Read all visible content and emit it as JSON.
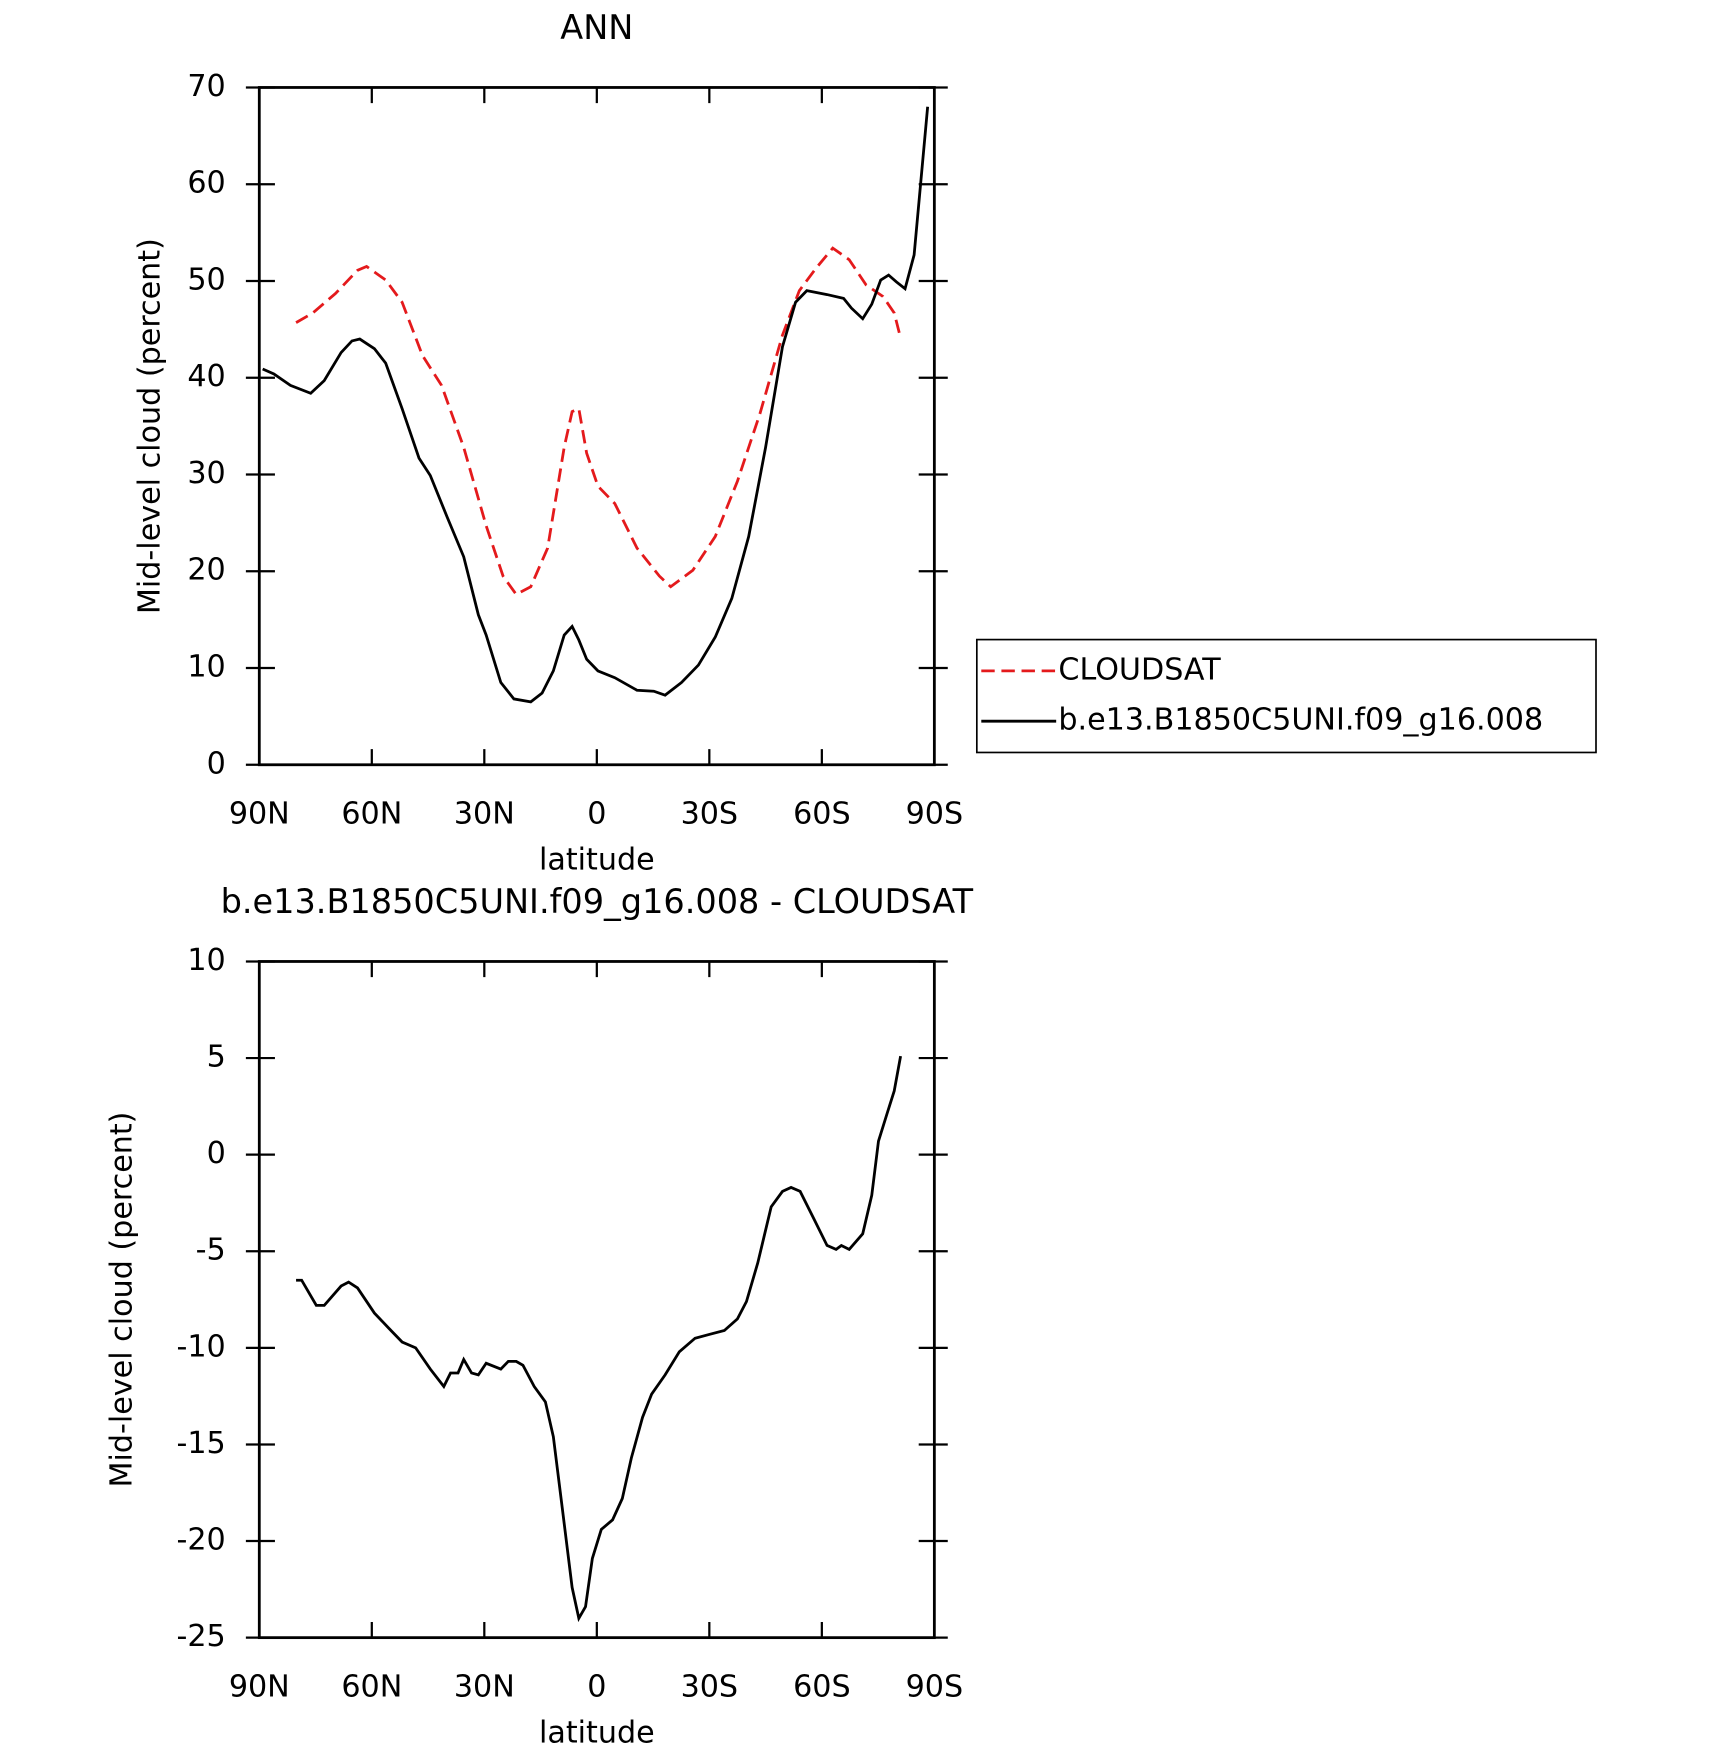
{
  "chart_data": [
    {
      "type": "line",
      "title": "ANN",
      "xlabel": "latitude",
      "ylabel": "Mid-level cloud (percent)",
      "xlim": [
        90,
        -90
      ],
      "ylim": [
        0,
        70
      ],
      "xticks": [
        {
          "value": 90,
          "label": "90N"
        },
        {
          "value": 60,
          "label": "60N"
        },
        {
          "value": 30,
          "label": "30N"
        },
        0,
        {
          "value": -30,
          "label": "30S"
        },
        {
          "value": -60,
          "label": "60S"
        },
        {
          "value": -90,
          "label": "90S"
        }
      ],
      "yticks": [
        0,
        10,
        20,
        30,
        40,
        50,
        60,
        70
      ],
      "legend": true,
      "series": [
        {
          "name": "CLOUDSAT",
          "color": "#e41a1c",
          "dash": true,
          "x": [
            80.2,
            75.7,
            69.7,
            63.8,
            61.4,
            56.3,
            51.9,
            46.5,
            41.4,
            35.5,
            29.5,
            25.0,
            21.5,
            17.6,
            13.1,
            8.7,
            6.6,
            4.8,
            2.7,
            -0.3,
            -4.8,
            -10.7,
            -16.7,
            -19.7,
            -25.6,
            -31.6,
            -37.5,
            -43.5,
            -49.5,
            -54.0,
            -58.4,
            -62.9,
            -67.3,
            -71.8,
            -76.3,
            -79.3,
            -81.0
          ],
          "values": [
            45.7,
            46.7,
            48.7,
            51.1,
            51.5,
            50.1,
            47.8,
            42.3,
            39.2,
            32.8,
            24.7,
            19.5,
            17.6,
            18.4,
            22.4,
            32.8,
            36.5,
            36.8,
            32.2,
            28.8,
            27.0,
            22.4,
            19.5,
            18.4,
            20.1,
            23.6,
            29.3,
            36.3,
            44.4,
            49.0,
            51.3,
            53.4,
            52.2,
            49.6,
            48.4,
            46.7,
            44.1
          ]
        },
        {
          "name": "b.e13.B1850C5UNI.f09_g16.008",
          "color": "#000000",
          "dash": false,
          "x": [
            89.1,
            86.1,
            81.7,
            76.3,
            72.7,
            68.2,
            65.3,
            63.2,
            59.3,
            56.3,
            51.9,
            47.4,
            44.4,
            39.9,
            35.5,
            31.6,
            29.5,
            25.6,
            22.1,
            17.6,
            14.6,
            11.6,
            8.7,
            6.6,
            4.8,
            2.7,
            -0.3,
            -4.8,
            -10.7,
            -15.2,
            -18.2,
            -22.6,
            -27.1,
            -31.6,
            -36.0,
            -40.5,
            -45.0,
            -49.5,
            -53.0,
            -56.0,
            -61.4,
            -65.8,
            -67.9,
            -70.9,
            -73.3,
            -75.7,
            -77.8,
            -79.9,
            -82.2,
            -84.6,
            -88.2
          ],
          "values": [
            40.9,
            40.4,
            39.2,
            38.4,
            39.7,
            42.6,
            43.8,
            44.0,
            43.0,
            41.5,
            36.8,
            31.7,
            29.9,
            25.6,
            21.5,
            15.5,
            13.4,
            8.5,
            6.8,
            6.5,
            7.4,
            9.7,
            13.4,
            14.3,
            12.9,
            10.9,
            9.7,
            9.0,
            7.7,
            7.6,
            7.2,
            8.5,
            10.3,
            13.2,
            17.2,
            23.6,
            32.8,
            43.2,
            47.8,
            49.0,
            48.6,
            48.2,
            47.2,
            46.1,
            47.6,
            50.1,
            50.6,
            49.9,
            49.2,
            52.7,
            68.0
          ]
        }
      ]
    },
    {
      "type": "line",
      "title": "b.e13.B1850C5UNI.f09_g16.008 - CLOUDSAT",
      "xlabel": "latitude",
      "ylabel": "Mid-level cloud (percent)",
      "xlim": [
        90,
        -90
      ],
      "ylim": [
        -25,
        10
      ],
      "xticks": [
        {
          "value": 90,
          "label": "90N"
        },
        {
          "value": 60,
          "label": "60N"
        },
        {
          "value": 30,
          "label": "30N"
        },
        0,
        {
          "value": -30,
          "label": "30S"
        },
        {
          "value": -60,
          "label": "60S"
        },
        {
          "value": -90,
          "label": "90S"
        }
      ],
      "yticks": [
        -25,
        -20,
        -15,
        -10,
        -5,
        0,
        5,
        10
      ],
      "legend": false,
      "series": [
        {
          "color": "#000000",
          "dash": false,
          "x": [
            80.2,
            78.7,
            74.8,
            72.7,
            68.2,
            66.2,
            63.8,
            59.3,
            55.4,
            51.9,
            48.3,
            44.4,
            40.8,
            39.0,
            37.0,
            35.5,
            33.4,
            31.6,
            29.5,
            25.6,
            23.6,
            21.5,
            19.7,
            16.7,
            13.7,
            11.6,
            9.2,
            6.6,
            4.8,
            3.0,
            1.2,
            -1.2,
            -4.2,
            -6.8,
            -9.2,
            -12.2,
            -14.6,
            -18.2,
            -22.0,
            -26.2,
            -30.1,
            -34.0,
            -37.5,
            -39.9,
            -42.9,
            -46.5,
            -49.5,
            -51.8,
            -54.2,
            -57.8,
            -61.4,
            -63.8,
            -65.2,
            -67.3,
            -70.9,
            -73.3,
            -75.1,
            -77.5,
            -79.3,
            -81.0
          ],
          "values": [
            -6.5,
            -6.5,
            -7.8,
            -7.8,
            -6.8,
            -6.6,
            -6.9,
            -8.2,
            -9.0,
            -9.7,
            -10.0,
            -11.1,
            -12.0,
            -11.3,
            -11.3,
            -10.6,
            -11.3,
            -11.4,
            -10.8,
            -11.1,
            -10.7,
            -10.7,
            -10.9,
            -12.0,
            -12.8,
            -14.6,
            -18.3,
            -22.4,
            -24.0,
            -23.4,
            -20.9,
            -19.4,
            -18.9,
            -17.8,
            -15.7,
            -13.6,
            -12.4,
            -11.4,
            -10.2,
            -9.5,
            -9.3,
            -9.1,
            -8.5,
            -7.6,
            -5.6,
            -2.7,
            -1.9,
            -1.7,
            -1.9,
            -3.3,
            -4.7,
            -4.9,
            -4.7,
            -4.9,
            -4.1,
            -2.1,
            0.7,
            2.2,
            3.3,
            5.1
          ]
        }
      ]
    }
  ]
}
